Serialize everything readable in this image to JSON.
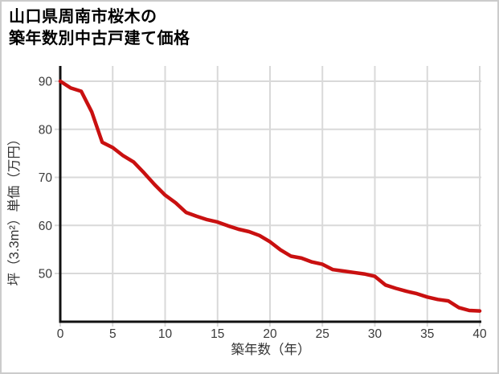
{
  "title": {
    "line1": "山口県周南市桜木の",
    "line2": "築年数別中古戸建て価格"
  },
  "chart_data": {
    "type": "line",
    "title": "山口県周南市桜木の築年数別中古戸建て価格",
    "xlabel": "築年数（年）",
    "ylabel": "坪（3.3m²）単価（万円）",
    "x": [
      0,
      1,
      2,
      3,
      4,
      5,
      6,
      7,
      8,
      9,
      10,
      11,
      12,
      13,
      14,
      15,
      16,
      17,
      18,
      19,
      20,
      21,
      22,
      23,
      24,
      25,
      26,
      27,
      28,
      29,
      30,
      31,
      32,
      33,
      34,
      35,
      36,
      37,
      38,
      39,
      40
    ],
    "y": [
      90.0,
      88.6,
      87.9,
      83.6,
      77.3,
      76.2,
      74.5,
      73.2,
      70.9,
      68.5,
      66.3,
      64.7,
      62.7,
      61.9,
      61.2,
      60.7,
      59.9,
      59.2,
      58.7,
      57.9,
      56.6,
      54.9,
      53.6,
      53.2,
      52.4,
      51.9,
      50.8,
      50.5,
      50.2,
      49.9,
      49.4,
      47.6,
      46.9,
      46.3,
      45.8,
      45.1,
      44.6,
      44.3,
      42.9,
      42.3,
      42.2
    ],
    "x_ticks": [
      0,
      5,
      10,
      15,
      20,
      25,
      30,
      35,
      40
    ],
    "y_ticks": [
      50,
      60,
      70,
      80,
      90
    ],
    "xlim": [
      0,
      40
    ],
    "ylim": [
      40,
      93
    ],
    "grid": true,
    "legend": "none",
    "colors": {
      "line": "#c91010",
      "grid": "#d9d9d9",
      "axis": "#111111",
      "tick_text": "#3a3a3a",
      "label_text": "#333333",
      "border": "#cccccc"
    }
  }
}
